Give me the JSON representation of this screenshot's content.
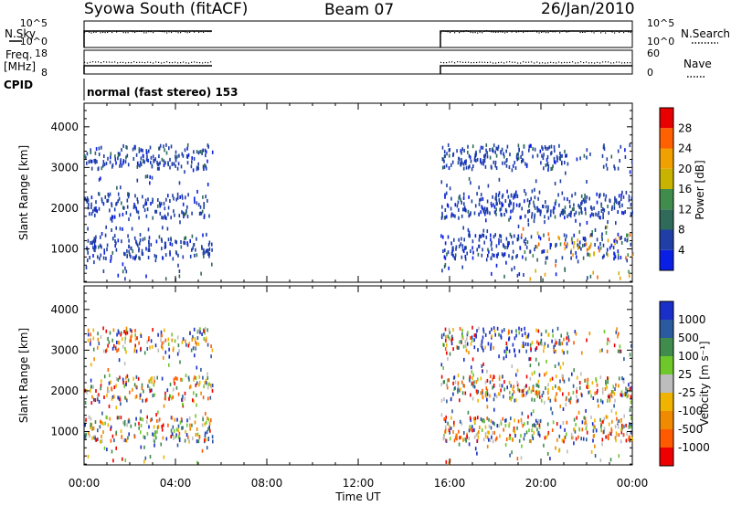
{
  "header": {
    "title": "Syowa South (fitACF)",
    "beam": "Beam 07",
    "date": "26/Jan/2010"
  },
  "top_panels": {
    "nsky_label": "N.Sky",
    "nsearch_label": "N.Search",
    "nsky_ticks": [
      "10^5",
      "10^0"
    ],
    "nsearch_ticks": [
      "10^5",
      "10^0"
    ],
    "freq_label_1": "Freq.",
    "freq_label_2": "[MHz]",
    "freq_ticks": [
      "18",
      "8"
    ],
    "nave_label": "Nave",
    "nave_ticks": [
      "60",
      "0"
    ],
    "cpid_label": "CPID",
    "cpid_text": "normal (fast stereo) 153"
  },
  "chart_data": [
    {
      "type": "heatmap",
      "name": "power",
      "ylabel": "Slant Range [km]",
      "xlabel": "",
      "ylim": [
        180,
        4580
      ],
      "yticks": [
        "1000",
        "2000",
        "3000",
        "4000"
      ],
      "xlim_hours": [
        0,
        24
      ],
      "colorbar_label": "Power [dB]",
      "colorbar_ticks": [
        "4",
        "8",
        "12",
        "16",
        "20",
        "24",
        "28"
      ],
      "colorbar_colors": [
        "#0a1fe6",
        "#1f3fa6",
        "#2f6a5a",
        "#3f8c4c",
        "#c8b400",
        "#f0a000",
        "#ff6000",
        "#e80000"
      ],
      "data_intervals_hours": [
        [
          0.0,
          5.6
        ],
        [
          15.6,
          24.0
        ]
      ]
    },
    {
      "type": "heatmap",
      "name": "velocity",
      "ylabel": "Slant Range [km]",
      "xlabel": "Time UT",
      "ylim": [
        180,
        4580
      ],
      "yticks": [
        "1000",
        "2000",
        "3000",
        "4000"
      ],
      "xticks": [
        "00:00",
        "04:00",
        "08:00",
        "12:00",
        "16:00",
        "20:00",
        "00:00"
      ],
      "xlim_hours": [
        0,
        24
      ],
      "colorbar_label": "Velocity [m s⁻¹]",
      "colorbar_ticks": [
        "1000",
        "500",
        "100",
        "25",
        "-25",
        "-100",
        "-500",
        "-1000"
      ],
      "colorbar_colors": [
        "#1a2fc8",
        "#2c5a9e",
        "#3f8c4c",
        "#6ec82a",
        "#bdbdbd",
        "#f0b400",
        "#f08a00",
        "#ff5a00",
        "#ee0000"
      ],
      "data_intervals_hours": [
        [
          0.0,
          5.6
        ],
        [
          15.6,
          24.0
        ]
      ]
    }
  ],
  "operating_periods_hours": [
    [
      0.0,
      5.6
    ],
    [
      15.6,
      24.0
    ]
  ]
}
